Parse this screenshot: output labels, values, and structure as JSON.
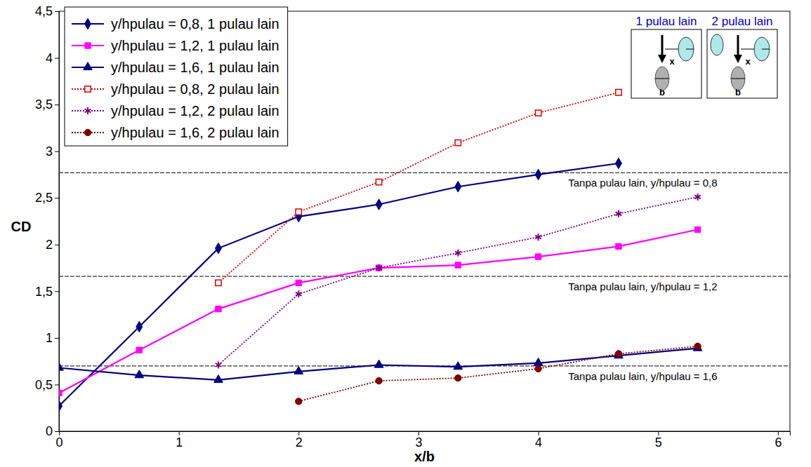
{
  "chart_data": {
    "type": "line",
    "x_label": "x/b",
    "y_label": "CD",
    "xlim": [
      0,
      6.1
    ],
    "xticks": [
      0,
      1,
      2,
      3,
      4,
      5,
      6
    ],
    "ylim": [
      0,
      4.5
    ],
    "yticks": [
      0,
      {
        "value": 0.5,
        "label": "0,5"
      },
      1,
      {
        "value": 1.5,
        "label": "1,5"
      },
      2,
      {
        "value": 2.5,
        "label": "2,5"
      },
      3,
      {
        "value": 3.5,
        "label": "3,5"
      },
      4,
      {
        "value": 4.5,
        "label": "4,5"
      }
    ],
    "grid": false,
    "legend": "upper left",
    "series": [
      {
        "name": "y/hpulau = 0,8, 1 pulau lain",
        "color": "#000080",
        "marker": "diamond",
        "line_style": "solid",
        "x": [
          0,
          0.67,
          1.33,
          2,
          2.67,
          3.33,
          4,
          4.67
        ],
        "values": [
          0.27,
          1.12,
          1.96,
          2.3,
          2.43,
          2.62,
          2.75,
          2.87
        ]
      },
      {
        "name": "y/hpulau = 1,2, 1 pulau lain",
        "color": "#ff00ff",
        "marker": "square",
        "line_style": "solid",
        "x": [
          0,
          0.67,
          1.33,
          2,
          2.67,
          3.33,
          4,
          4.67,
          5.33
        ],
        "values": [
          0.41,
          0.87,
          1.31,
          1.59,
          1.75,
          1.78,
          1.87,
          1.98,
          2.16
        ]
      },
      {
        "name": "y/hpulau = 1,6, 1 pulau lain",
        "color": "#000080",
        "marker": "triangle",
        "line_style": "solid",
        "x": [
          0,
          0.67,
          1.33,
          2,
          2.67,
          3.33,
          4,
          4.67,
          5.33
        ],
        "values": [
          0.68,
          0.6,
          0.55,
          0.64,
          0.71,
          0.69,
          0.73,
          0.81,
          0.89
        ]
      },
      {
        "name": "y/hpulau = 0,8, 2 pulau lain",
        "color": "#e00000",
        "marker": "square-open",
        "line_style": "dotted",
        "x": [
          1.33,
          2,
          2.67,
          3.33,
          4,
          4.67
        ],
        "values": [
          1.59,
          2.35,
          2.67,
          3.09,
          3.41,
          3.63
        ]
      },
      {
        "name": "y/hpulau = 1,2, 2 pulau lain",
        "color": "#800080",
        "marker": "asterisk",
        "line_style": "dotted",
        "x": [
          1.33,
          2,
          2.67,
          3.33,
          4,
          4.67,
          5.33
        ],
        "values": [
          0.71,
          1.47,
          1.75,
          1.91,
          2.08,
          2.33,
          2.51
        ]
      },
      {
        "name": "y/hpulau = 1,6, 2 pulau lain",
        "color": "#800000",
        "marker": "circle",
        "line_style": "dotted",
        "x": [
          2,
          2.67,
          3.33,
          4,
          4.67,
          5.33
        ],
        "values": [
          0.32,
          0.54,
          0.57,
          0.67,
          0.83,
          0.91
        ]
      }
    ],
    "annotations": [
      {
        "text": "Tanpa pulau lain, y/hpulau = 0,8",
        "y": 2.77
      },
      {
        "text": "Tanpa pulau lain, y/hpulau = 1,2",
        "y": 1.66
      },
      {
        "text": "Tanpa pulau lain, y/hpulau = 1,6",
        "y": 0.7
      }
    ],
    "inset": {
      "panels": [
        "1 pulau lain",
        "2 pulau lain"
      ],
      "x_label": "x",
      "b_label": "b"
    }
  }
}
